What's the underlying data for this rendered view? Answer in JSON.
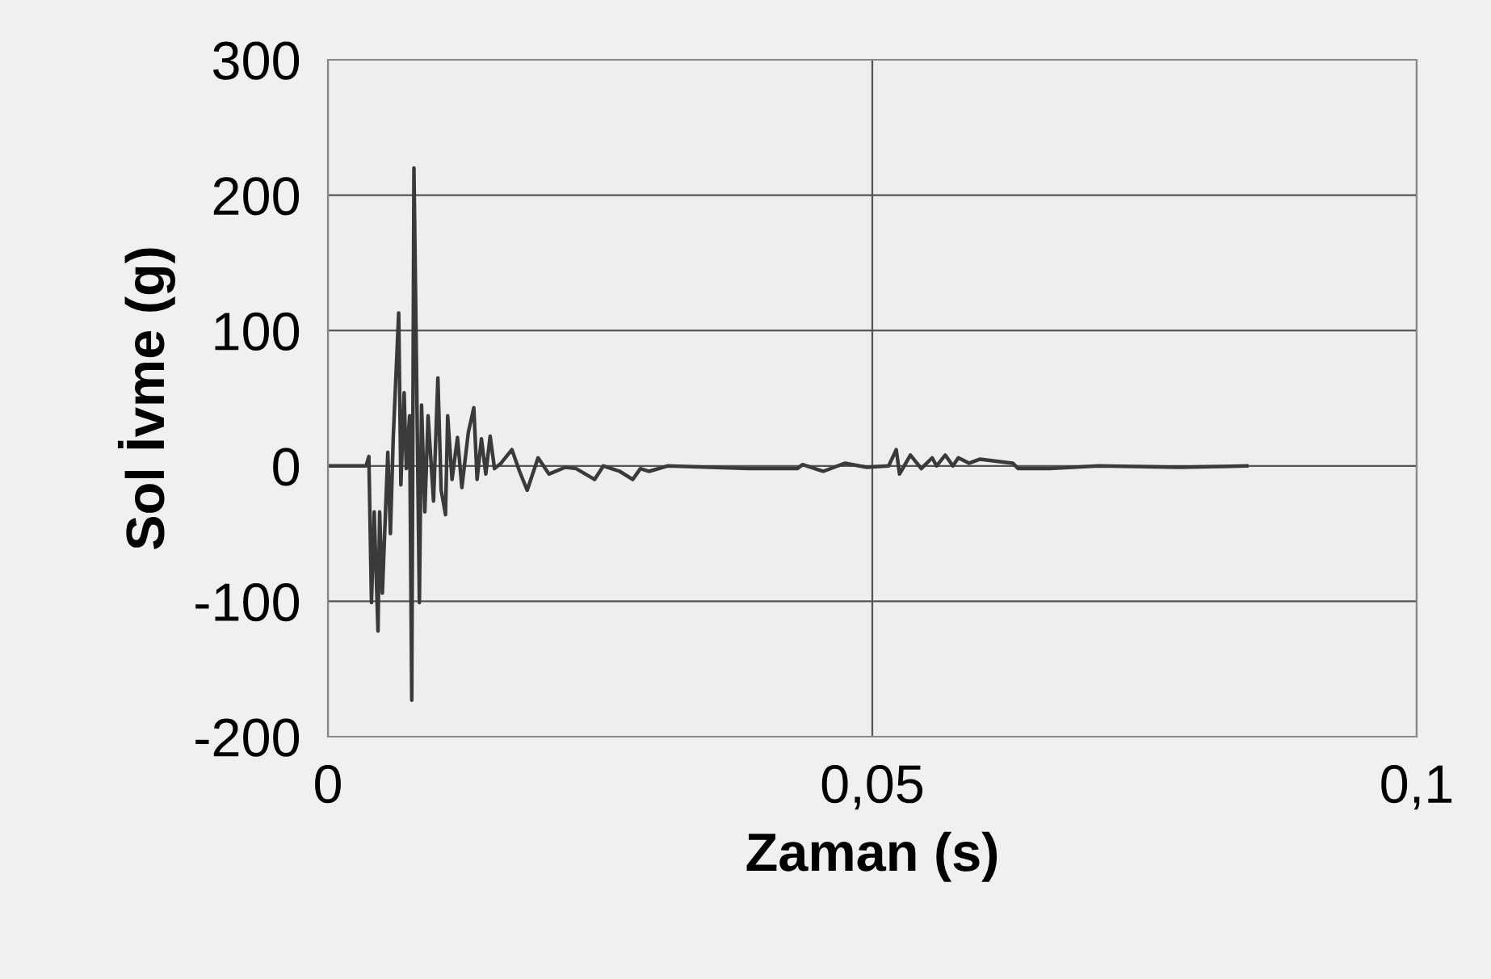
{
  "chart_data": {
    "type": "line",
    "xlabel": "Zaman (s)",
    "ylabel": "Sol İvme (g)",
    "xlim": [
      0,
      0.1
    ],
    "xticks": [
      {
        "value": 0,
        "label": "0"
      },
      {
        "value": 0.05,
        "label": "0,05"
      },
      {
        "value": 0.1,
        "label": "0,1"
      }
    ],
    "ylim": [
      -200,
      300
    ],
    "yticks": [
      -200,
      -100,
      0,
      100,
      200,
      300
    ],
    "grid": true,
    "marker": "none",
    "line_style": "solid",
    "series": [
      {
        "color": "#3a3a3a",
        "x": [
          0,
          0.0035,
          0.00376,
          0.004,
          0.00425,
          0.0046,
          0.00475,
          0.005,
          0.0055,
          0.00574,
          0.006,
          0.0065,
          0.0067,
          0.007,
          0.0072,
          0.0075,
          0.0077,
          0.0079,
          0.0081,
          0.0084,
          0.0086,
          0.0089,
          0.0092,
          0.0097,
          0.0101,
          0.0104,
          0.0108,
          0.011,
          0.0114,
          0.0119,
          0.0123,
          0.0129,
          0.0134,
          0.0137,
          0.0141,
          0.0145,
          0.0149,
          0.0153,
          0.0159,
          0.0169,
          0.0176,
          0.0183,
          0.0193,
          0.0203,
          0.0218,
          0.0228,
          0.0245,
          0.0253,
          0.0268,
          0.028,
          0.0287,
          0.0295,
          0.0312,
          0.0386,
          0.0431,
          0.0436,
          0.0455,
          0.0475,
          0.0495,
          0.0515,
          0.0522,
          0.0525,
          0.0535,
          0.0545,
          0.0555,
          0.0559,
          0.0567,
          0.0574,
          0.0579,
          0.0589,
          0.0599,
          0.0629,
          0.0634,
          0.0663,
          0.0708,
          0.0782,
          0.0844
        ],
        "values": [
          0,
          0,
          7,
          -101,
          -34,
          -122,
          -34,
          -94,
          10,
          -50,
          21,
          113,
          -14,
          54,
          -2,
          37,
          -173,
          220,
          97,
          -101,
          45,
          -34,
          37,
          -26,
          65,
          -18,
          -36,
          37,
          -10,
          21,
          -16,
          25,
          43,
          -10,
          20,
          -6,
          22,
          -2,
          2,
          12,
          -4,
          -18,
          6,
          -6,
          -1,
          -2,
          -10,
          0,
          -4,
          -10,
          -2,
          -4,
          0,
          -2,
          -2,
          1,
          -4,
          2,
          -1,
          0,
          12,
          -6,
          8,
          -2,
          6,
          0,
          8,
          0,
          6,
          2,
          5,
          2,
          -2,
          -2,
          0,
          -1,
          0
        ]
      }
    ]
  }
}
